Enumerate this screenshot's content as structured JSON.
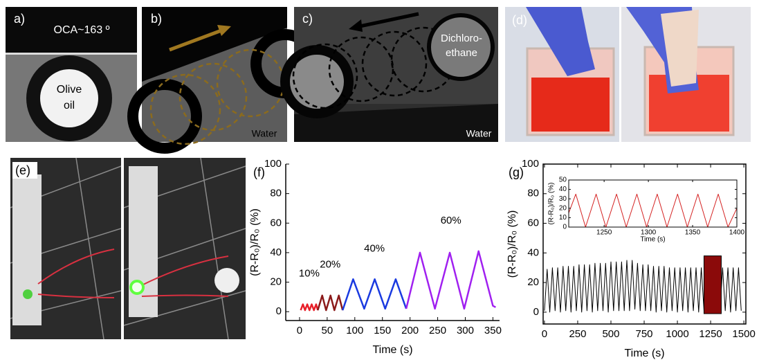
{
  "photo_panels": [
    {
      "label": "a)",
      "texts": [
        "OCA~163 º",
        "Olive",
        "oil"
      ]
    },
    {
      "label": "b)",
      "texts": [
        "Water"
      ]
    },
    {
      "label": "c)",
      "texts": [
        "Dichloro-",
        "ethane",
        "Water"
      ]
    },
    {
      "label": "(d)"
    },
    {
      "label": "(e)"
    }
  ],
  "chart_data": [
    {
      "type": "line",
      "panel_label": "(f)",
      "x_label": "Time (s)",
      "y_label": "(R-R₀)/R₀ (%)",
      "xlim": [
        -25,
        362
      ],
      "ylim": [
        -6,
        100
      ],
      "xticks": [
        0,
        50,
        100,
        150,
        200,
        250,
        300,
        350
      ],
      "yticks": [
        0,
        20,
        40,
        60,
        80,
        100
      ],
      "frame": false,
      "series_labels": true,
      "series": [
        {
          "name": "10%",
          "color": "#e8202a",
          "x": [
            2,
            6,
            10,
            14,
            18,
            22,
            26,
            30,
            33
          ],
          "values": [
            1,
            5,
            1,
            5,
            1,
            5,
            1,
            5,
            1
          ]
        },
        {
          "name": "20%",
          "color": "#8b1a1a",
          "x": [
            33,
            41,
            48,
            56,
            63,
            71,
            78
          ],
          "values": [
            1,
            11,
            1,
            11,
            1,
            11,
            1
          ]
        },
        {
          "name": "40%",
          "color": "#1a3ae0",
          "x": [
            78,
            97,
            117,
            136,
            155,
            174,
            193
          ],
          "values": [
            1,
            22,
            2,
            22,
            2,
            22,
            2
          ]
        },
        {
          "name": "60%",
          "color": "#a020f0",
          "x": [
            193,
            218,
            245,
            272,
            298,
            324,
            350,
            355
          ],
          "values": [
            2,
            40,
            2,
            40,
            2,
            41,
            4,
            3
          ]
        }
      ]
    },
    {
      "type": "line",
      "panel_label": "(g)",
      "x_label": "Time (s)",
      "y_label": "(R-R₀)/R₀ (%)",
      "xlim": [
        -10,
        1515
      ],
      "ylim": [
        -8,
        100
      ],
      "xticks": [
        0,
        250,
        500,
        750,
        1000,
        1250,
        1500
      ],
      "yticks": [
        0,
        20,
        40,
        60,
        80,
        100
      ],
      "frame": true,
      "highlight": {
        "x": [
          1200,
          1330
        ],
        "y": [
          -1,
          38
        ],
        "color": "#8b0a0a"
      },
      "series": [
        {
          "color": "#000000",
          "x": [
            0,
            20,
            40,
            60,
            80,
            100,
            120,
            140,
            160,
            180,
            200,
            220,
            240,
            260,
            280,
            300,
            320,
            340,
            360,
            380,
            400,
            420,
            440,
            460,
            480,
            500,
            520,
            540,
            560,
            580,
            600,
            620,
            640,
            660,
            680,
            700,
            720,
            740,
            760,
            780,
            800,
            820,
            840,
            860,
            880,
            900,
            920,
            940,
            960,
            980,
            1000,
            1020,
            1040,
            1060,
            1080,
            1100,
            1120,
            1140,
            1160,
            1180,
            1200,
            1220,
            1240,
            1260,
            1280,
            1300,
            1320,
            1340,
            1360,
            1380,
            1400,
            1420,
            1440,
            1460,
            1480
          ],
          "values": [
            1,
            29,
            0,
            30,
            1,
            30,
            0,
            31,
            1,
            31,
            0,
            31,
            1,
            32,
            0,
            32,
            1,
            32,
            0,
            33,
            1,
            33,
            1,
            33,
            0,
            34,
            1,
            34,
            1,
            34,
            1,
            35,
            1,
            35,
            2,
            33,
            1,
            32,
            1,
            32,
            1,
            31,
            0,
            31,
            1,
            31,
            0,
            30,
            1,
            30,
            0,
            30,
            1,
            30,
            0,
            30,
            1,
            30,
            0,
            30,
            1,
            31,
            0,
            31,
            1,
            31,
            0,
            30,
            1,
            30,
            0,
            30,
            1,
            30,
            1
          ]
        }
      ]
    },
    {
      "type": "line",
      "x_label": "Time (s)",
      "y_label": "(R-R₀)/R₀ (%)",
      "xlim": [
        1210,
        1400
      ],
      "ylim": [
        0,
        50
      ],
      "xticks": [
        1250,
        1300,
        1350,
        1400
      ],
      "yticks": [
        0,
        10,
        20,
        30,
        40,
        50
      ],
      "frame": true,
      "small": true,
      "series": [
        {
          "color": "#d42020",
          "x": [
            1210,
            1218,
            1229,
            1241,
            1252,
            1264,
            1275,
            1287,
            1298,
            1310,
            1321,
            1333,
            1344,
            1356,
            1367,
            1379,
            1390,
            1400
          ],
          "values": [
            15,
            35,
            0,
            35,
            0,
            35,
            0,
            35,
            0,
            35,
            0,
            35,
            0,
            35,
            0,
            35,
            0,
            20
          ]
        }
      ]
    }
  ]
}
